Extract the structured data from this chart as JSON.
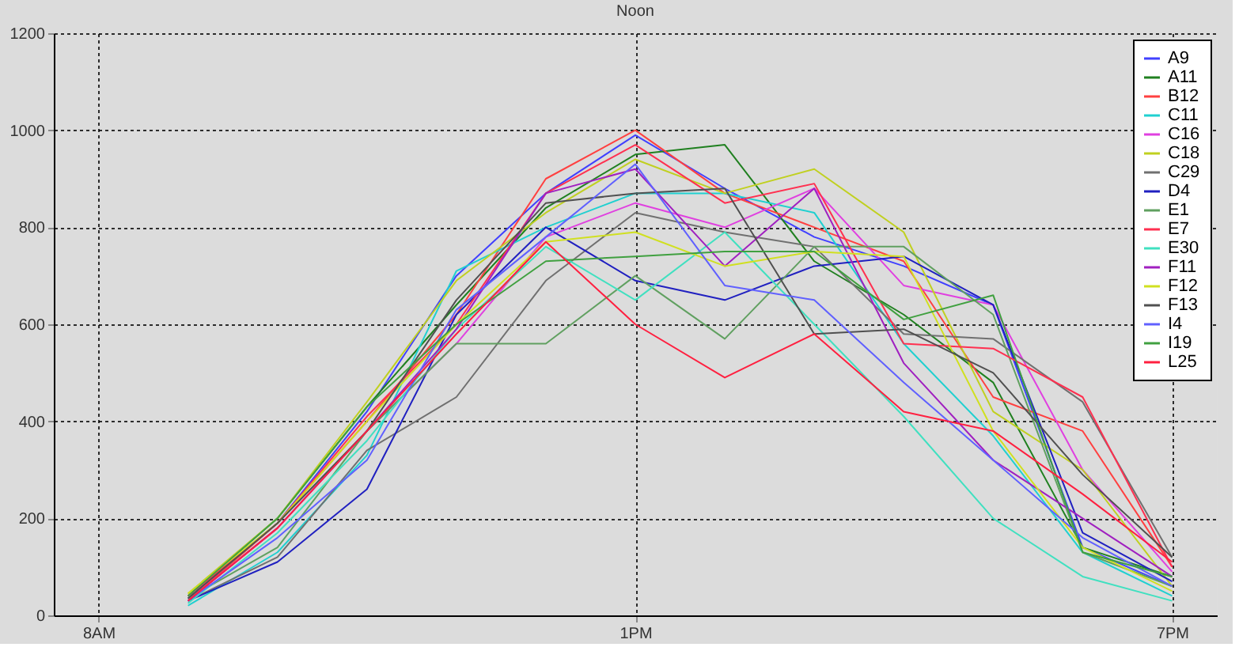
{
  "chart_data": {
    "type": "line",
    "title": "Noon",
    "categories": [
      "8AM",
      null,
      null,
      null,
      null,
      null,
      "1PM",
      null,
      null,
      null,
      null,
      null,
      "7PM"
    ],
    "ylim": [
      0,
      1200
    ],
    "yticks": [
      0,
      200,
      400,
      600,
      800,
      1000,
      1200
    ],
    "grid": true,
    "legend": "top right",
    "marker": "none",
    "line_style": "solid",
    "series": [
      {
        "name": "A9",
        "color": "#4040ff",
        "values": [
          null,
          35,
          190,
          420,
          700,
          870,
          990,
          880,
          780,
          720,
          640,
          140,
          60
        ]
      },
      {
        "name": "A11",
        "color": "#208020",
        "values": [
          null,
          40,
          200,
          430,
          640,
          840,
          950,
          970,
          730,
          620,
          480,
          140,
          80
        ]
      },
      {
        "name": "B12",
        "color": "#ff4040",
        "values": [
          null,
          30,
          190,
          400,
          620,
          900,
          1000,
          870,
          800,
          730,
          450,
          380,
          100
        ]
      },
      {
        "name": "C11",
        "color": "#20d0d0",
        "values": [
          null,
          20,
          130,
          330,
          710,
          800,
          870,
          870,
          830,
          560,
          370,
          130,
          40
        ]
      },
      {
        "name": "C16",
        "color": "#e040e0",
        "values": [
          null,
          30,
          180,
          380,
          560,
          780,
          850,
          800,
          880,
          680,
          640,
          300,
          90
        ]
      },
      {
        "name": "C18",
        "color": "#c0d020",
        "values": [
          null,
          45,
          200,
          440,
          690,
          830,
          940,
          870,
          920,
          790,
          420,
          300,
          60
        ]
      },
      {
        "name": "C29",
        "color": "#707070",
        "values": [
          null,
          30,
          120,
          340,
          450,
          690,
          830,
          790,
          760,
          580,
          570,
          440,
          120
        ]
      },
      {
        "name": "D4",
        "color": "#2020c0",
        "values": [
          null,
          30,
          110,
          260,
          620,
          800,
          690,
          650,
          720,
          740,
          640,
          170,
          70
        ]
      },
      {
        "name": "E1",
        "color": "#60a060",
        "values": [
          null,
          35,
          140,
          380,
          560,
          560,
          700,
          570,
          760,
          760,
          620,
          130,
          60
        ]
      },
      {
        "name": "E7",
        "color": "#ff3050",
        "values": [
          null,
          40,
          190,
          410,
          600,
          870,
          970,
          850,
          890,
          560,
          550,
          450,
          100
        ]
      },
      {
        "name": "E30",
        "color": "#40e0c0",
        "values": [
          null,
          25,
          170,
          360,
          590,
          760,
          650,
          790,
          600,
          410,
          200,
          80,
          30
        ]
      },
      {
        "name": "F11",
        "color": "#a020c0",
        "values": [
          null,
          30,
          180,
          380,
          590,
          870,
          920,
          720,
          880,
          520,
          320,
          200,
          80
        ]
      },
      {
        "name": "F12",
        "color": "#d0e020",
        "values": [
          null,
          45,
          190,
          400,
          600,
          770,
          790,
          720,
          750,
          740,
          380,
          140,
          50
        ]
      },
      {
        "name": "F13",
        "color": "#505050",
        "values": [
          null,
          35,
          190,
          380,
          650,
          850,
          870,
          880,
          580,
          590,
          500,
          290,
          120
        ]
      },
      {
        "name": "I4",
        "color": "#6060ff",
        "values": [
          null,
          30,
          160,
          320,
          630,
          780,
          930,
          680,
          650,
          480,
          320,
          160,
          60
        ]
      },
      {
        "name": "I19",
        "color": "#40a040",
        "values": [
          null,
          40,
          200,
          430,
          600,
          730,
          740,
          750,
          750,
          610,
          660,
          130,
          80
        ]
      },
      {
        "name": "L25",
        "color": "#ff2040",
        "values": [
          null,
          30,
          180,
          380,
          580,
          770,
          600,
          490,
          580,
          420,
          380,
          250,
          110
        ]
      }
    ]
  }
}
